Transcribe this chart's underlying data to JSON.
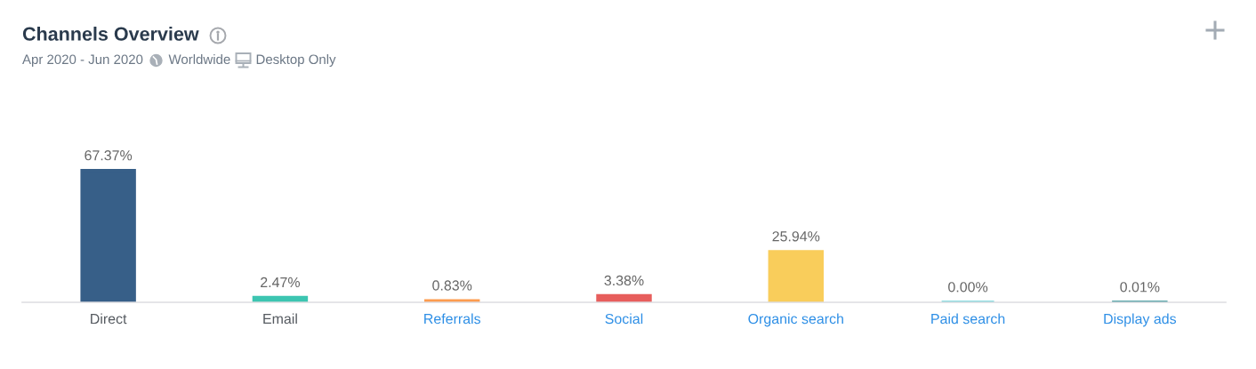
{
  "chart_data": {
    "type": "bar",
    "title": "Channels Overview",
    "subtitle": "Apr 2020 - Jun 2020",
    "annotations": [
      "Worldwide",
      "Desktop Only"
    ],
    "categories": [
      "Direct",
      "Email",
      "Referrals",
      "Social",
      "Organic search",
      "Paid search",
      "Display ads"
    ],
    "values": [
      67.37,
      2.47,
      0.83,
      3.38,
      25.94,
      0.0,
      0.01
    ],
    "value_labels": [
      "67.37%",
      "2.47%",
      "0.83%",
      "3.38%",
      "25.94%",
      "0.00%",
      "0.01%"
    ],
    "colors": [
      "#375f88",
      "#3cc5b1",
      "#fd9b4f",
      "#e75e5c",
      "#f9cd5b",
      "#6dd4d9",
      "#2b8d92"
    ],
    "tick_labels": "x"
  }
}
